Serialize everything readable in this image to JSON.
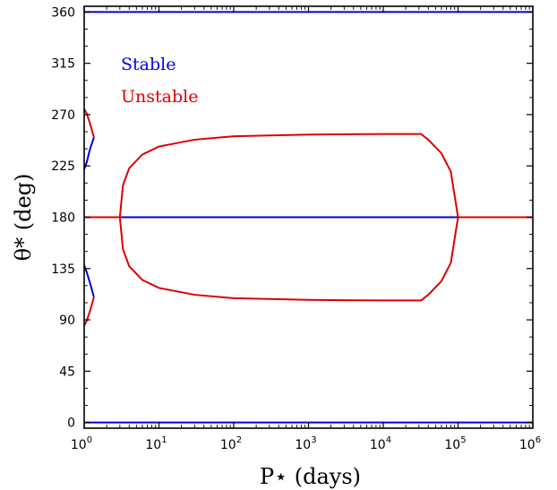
{
  "chart_data": {
    "type": "line",
    "title": "",
    "xlabel": "P⋆ (days)",
    "ylabel": "θ* (deg)",
    "xscale": "log",
    "xlim": [
      1,
      1000000
    ],
    "ylim": [
      -5,
      365
    ],
    "x_ticks": [
      {
        "value": 1,
        "base": "10",
        "exp": "0"
      },
      {
        "value": 10,
        "base": "10",
        "exp": "1"
      },
      {
        "value": 100,
        "base": "10",
        "exp": "2"
      },
      {
        "value": 1000,
        "base": "10",
        "exp": "3"
      },
      {
        "value": 10000,
        "base": "10",
        "exp": "4"
      },
      {
        "value": 100000,
        "base": "10",
        "exp": "5"
      },
      {
        "value": 1000000,
        "base": "10",
        "exp": "6"
      }
    ],
    "y_ticks": [
      0,
      45,
      90,
      135,
      180,
      225,
      270,
      315,
      360
    ],
    "y_tick_labels": [
      "0",
      "45",
      "90",
      "135",
      "180",
      "225",
      "270",
      "315",
      "360"
    ],
    "grid": false,
    "legend_position": "top-left",
    "colors": {
      "stable": "#0000dd",
      "unstable": "#dd0000"
    },
    "series": [
      {
        "name": "Stable",
        "color": "#0000dd",
        "points": [
          [
            1,
            0
          ],
          [
            1000000,
            0
          ]
        ]
      },
      {
        "name": "Stable",
        "color": "#0000dd",
        "points": [
          [
            1,
            360
          ],
          [
            1000000,
            360
          ]
        ]
      },
      {
        "name": "Stable",
        "color": "#0000dd",
        "points": [
          [
            3,
            180
          ],
          [
            100000,
            180
          ]
        ]
      },
      {
        "name": "Unstable",
        "color": "#dd0000",
        "points": [
          [
            1,
            180
          ],
          [
            3,
            180
          ]
        ]
      },
      {
        "name": "Unstable",
        "color": "#dd0000",
        "points": [
          [
            100000,
            180
          ],
          [
            1000000,
            180
          ]
        ]
      },
      {
        "name": "Unstable",
        "color": "#dd0000",
        "points": [
          [
            3,
            180
          ],
          [
            3.3,
            208
          ],
          [
            4,
            223
          ],
          [
            6,
            235
          ],
          [
            10,
            242
          ],
          [
            30,
            248
          ],
          [
            100,
            251
          ],
          [
            1000,
            252.5
          ],
          [
            10000,
            253
          ],
          [
            32000,
            253
          ],
          [
            40000,
            248
          ],
          [
            60000,
            236
          ],
          [
            80000,
            220
          ],
          [
            100000,
            180
          ]
        ]
      },
      {
        "name": "Unstable",
        "color": "#dd0000",
        "points": [
          [
            3,
            180
          ],
          [
            3.3,
            152
          ],
          [
            4,
            137
          ],
          [
            6,
            125
          ],
          [
            10,
            118
          ],
          [
            30,
            112
          ],
          [
            100,
            109
          ],
          [
            1000,
            107.5
          ],
          [
            10000,
            107
          ],
          [
            32000,
            107
          ],
          [
            40000,
            112
          ],
          [
            60000,
            124
          ],
          [
            80000,
            140
          ],
          [
            100000,
            180
          ]
        ]
      },
      {
        "name": "Stable",
        "color": "#0000dd",
        "points": [
          [
            1,
            222
          ],
          [
            1.08,
            228
          ],
          [
            1.2,
            240
          ],
          [
            1.35,
            250
          ]
        ]
      },
      {
        "name": "Unstable",
        "color": "#dd0000",
        "points": [
          [
            1.35,
            250
          ],
          [
            1.2,
            262
          ],
          [
            1.08,
            271
          ],
          [
            1,
            275
          ]
        ]
      },
      {
        "name": "Stable",
        "color": "#0000dd",
        "points": [
          [
            1,
            138
          ],
          [
            1.08,
            132
          ],
          [
            1.2,
            122
          ],
          [
            1.35,
            110
          ]
        ]
      },
      {
        "name": "Unstable",
        "color": "#dd0000",
        "points": [
          [
            1.35,
            110
          ],
          [
            1.2,
            98
          ],
          [
            1.08,
            89
          ],
          [
            1,
            85
          ]
        ]
      }
    ],
    "legend": [
      {
        "label": "Stable",
        "color": "#0000dd"
      },
      {
        "label": "Unstable",
        "color": "#dd0000"
      }
    ]
  }
}
